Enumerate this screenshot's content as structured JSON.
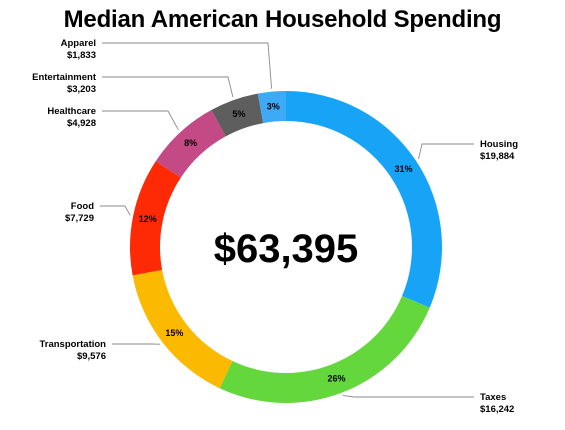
{
  "chart_data": {
    "type": "pie",
    "title": "Median American Household Spending",
    "center_label": "$63,395",
    "slices": [
      {
        "name": "Housing",
        "value": 19884,
        "value_label": "$19,884",
        "percent_label": "31%",
        "color": "#18a4f6"
      },
      {
        "name": "Taxes",
        "value": 16242,
        "value_label": "$16,242",
        "percent_label": "26%",
        "color": "#63d73c"
      },
      {
        "name": "Transportation",
        "value": 9576,
        "value_label": "$9,576",
        "percent_label": "15%",
        "color": "#fbba00"
      },
      {
        "name": "Food",
        "value": 7729,
        "value_label": "$7,729",
        "percent_label": "12%",
        "color": "#fd2a05"
      },
      {
        "name": "Healthcare",
        "value": 4928,
        "value_label": "$4,928",
        "percent_label": "8%",
        "color": "#c44a86"
      },
      {
        "name": "Entertainment",
        "value": 3203,
        "value_label": "$3,203",
        "percent_label": "5%",
        "color": "#5e5e5e"
      },
      {
        "name": "Apparel",
        "value": 1833,
        "value_label": "$1,833",
        "percent_label": "3%",
        "color": "#3daaf5"
      }
    ]
  }
}
